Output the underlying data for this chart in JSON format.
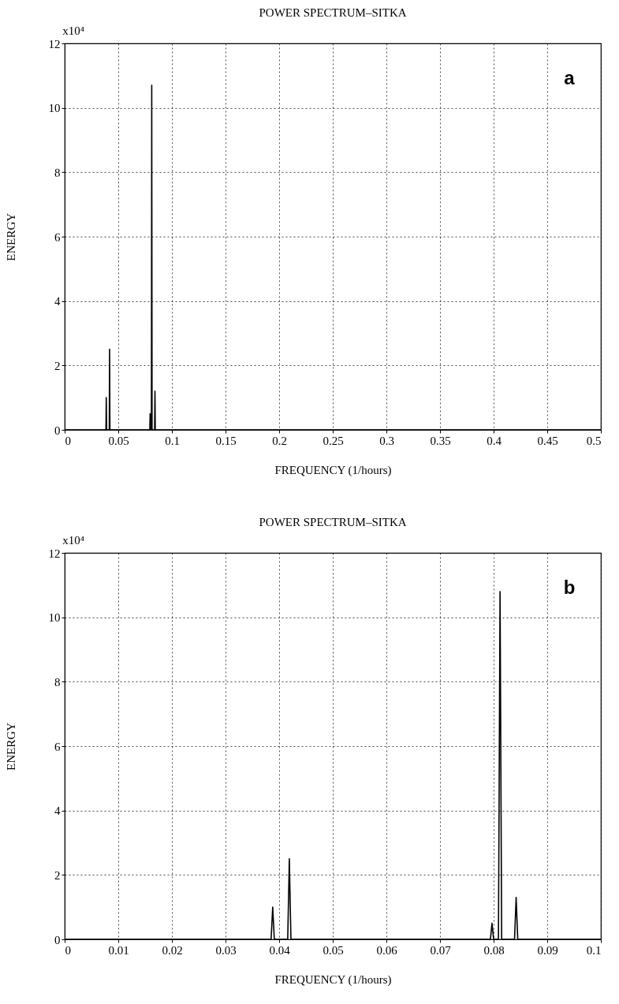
{
  "chart_data": [
    {
      "type": "line",
      "title": "POWER SPECTRUM–SITKA",
      "xlabel": "FREQUENCY (1/hours)",
      "ylabel": "ENERGY",
      "annotations": [
        "x10⁴",
        "a"
      ],
      "series": [
        {
          "color": "#000000",
          "x": [
            0,
            0.0385,
            0.0388,
            0.0391,
            0.0416,
            0.0419,
            0.0422,
            0.0794,
            0.0797,
            0.08,
            0.0809,
            0.0812,
            0.0815,
            0.0839,
            0.0842,
            0.0845,
            0.5
          ],
          "values": [
            0,
            0,
            1.0,
            0,
            0,
            2.5,
            0,
            0,
            0.5,
            0,
            0,
            10.7,
            0,
            0,
            1.2,
            0,
            0
          ]
        }
      ],
      "xlim": [
        0,
        0.5
      ],
      "xticks": [
        0,
        0.05,
        0.1,
        0.15,
        0.2,
        0.25,
        0.3,
        0.35,
        0.4,
        0.45,
        0.5
      ],
      "ylim": [
        0,
        12
      ],
      "yticks": [
        0,
        2,
        4,
        6,
        8,
        10,
        12
      ],
      "grid": true
    },
    {
      "type": "line",
      "title": "POWER SPECTRUM–SITKA",
      "xlabel": "FREQUENCY (1/hours)",
      "ylabel": "ENERGY",
      "annotations": [
        "x10⁴",
        "b"
      ],
      "series": [
        {
          "color": "#000000",
          "x": [
            0,
            0.0385,
            0.0388,
            0.0391,
            0.0416,
            0.0419,
            0.0422,
            0.0794,
            0.0797,
            0.08,
            0.0809,
            0.0812,
            0.0815,
            0.0839,
            0.0842,
            0.0845,
            0.1
          ],
          "values": [
            0,
            0,
            1.0,
            0,
            0,
            2.5,
            0,
            0,
            0.5,
            0,
            0,
            10.8,
            0,
            0,
            1.3,
            0,
            0
          ]
        }
      ],
      "xlim": [
        0,
        0.1
      ],
      "xticks": [
        0,
        0.01,
        0.02,
        0.03,
        0.04,
        0.05,
        0.06,
        0.07,
        0.08,
        0.09,
        0.1
      ],
      "ylim": [
        0,
        12
      ],
      "yticks": [
        0,
        2,
        4,
        6,
        8,
        10,
        12
      ],
      "grid": true
    }
  ]
}
